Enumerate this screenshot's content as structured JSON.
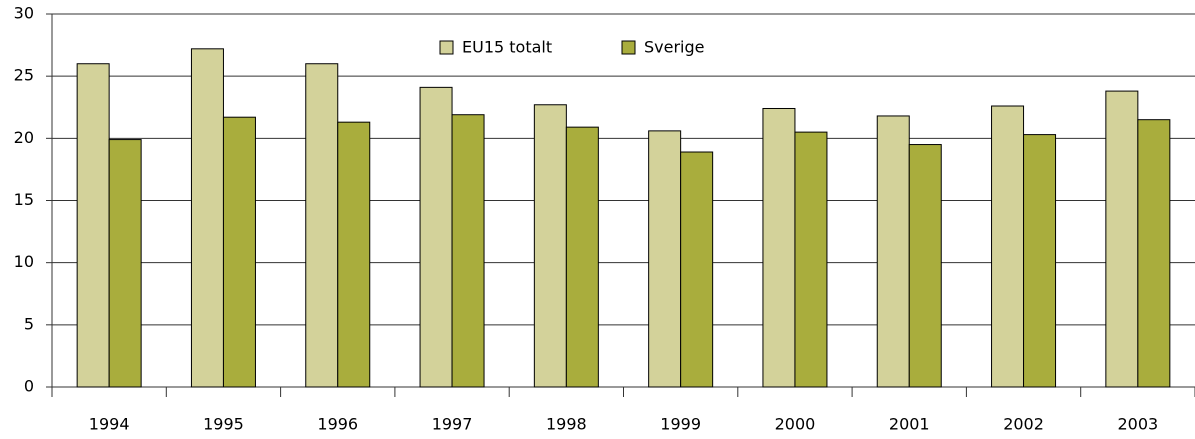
{
  "chart_data": {
    "type": "bar",
    "categories": [
      "1994",
      "1995",
      "1996",
      "1997",
      "1998",
      "1999",
      "2000",
      "2001",
      "2002",
      "2003"
    ],
    "series": [
      {
        "name": "EU15 totalt",
        "color": "#d3d29a",
        "values": [
          26.0,
          27.2,
          26.0,
          24.1,
          22.7,
          20.6,
          22.4,
          21.8,
          22.6,
          23.8
        ]
      },
      {
        "name": "Sverige",
        "color": "#a9ad3d",
        "values": [
          19.9,
          21.7,
          21.3,
          21.9,
          20.9,
          18.9,
          20.5,
          19.5,
          20.3,
          21.5
        ]
      }
    ],
    "ylim": [
      0,
      30
    ],
    "yticks": [
      0,
      5,
      10,
      15,
      20,
      25,
      30
    ],
    "grid": true
  }
}
